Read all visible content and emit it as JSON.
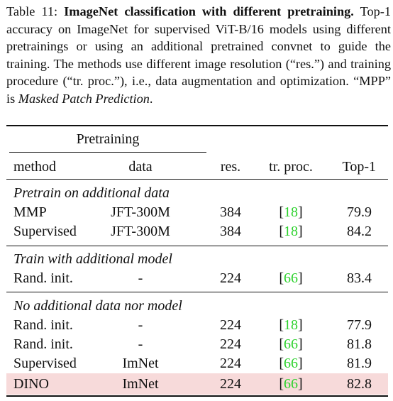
{
  "caption": {
    "label": "Table 11:",
    "title": "ImageNet classification with different pretraining.",
    "body_1": "Top-1 accuracy on ImageNet for supervised ViT-B/16 models using different pretrainings or using an additional pretrained convnet to guide the training. The methods use different image resolution (“res.”) and training procedure (“tr. proc.”), i.e., data augmentation and optimization. “MPP” is",
    "body_italic": "Masked Patch Prediction",
    "body_end": "."
  },
  "table": {
    "group_header": "Pretraining",
    "headers": {
      "method": "method",
      "data": "data",
      "res": "res.",
      "proc": "tr. proc.",
      "top1": "Top-1"
    },
    "sections": [
      {
        "title": "Pretrain on additional data",
        "rows": [
          {
            "method": "MMP",
            "data": "JFT-300M",
            "res": "384",
            "cite": "18",
            "top1": "79.9"
          },
          {
            "method": "Supervised",
            "data": "JFT-300M",
            "res": "384",
            "cite": "18",
            "top1": "84.2"
          }
        ]
      },
      {
        "title": "Train with additional model",
        "rows": [
          {
            "method": "Rand. init.",
            "data": "-",
            "res": "224",
            "cite": "66",
            "top1": "83.4"
          }
        ]
      },
      {
        "title": "No additional data nor model",
        "rows": [
          {
            "method": "Rand. init.",
            "data": "-",
            "res": "224",
            "cite": "18",
            "top1": "77.9"
          },
          {
            "method": "Rand. init.",
            "data": "-",
            "res": "224",
            "cite": "66",
            "top1": "81.8"
          },
          {
            "method": "Supervised",
            "data": "ImNet",
            "res": "224",
            "cite": "66",
            "top1": "81.9"
          },
          {
            "method": "DINO",
            "data": "ImNet",
            "res": "224",
            "cite": "66",
            "top1": "82.8"
          }
        ]
      }
    ]
  },
  "colors": {
    "cite": "#2bd12b",
    "highlight": "#f7dada"
  }
}
